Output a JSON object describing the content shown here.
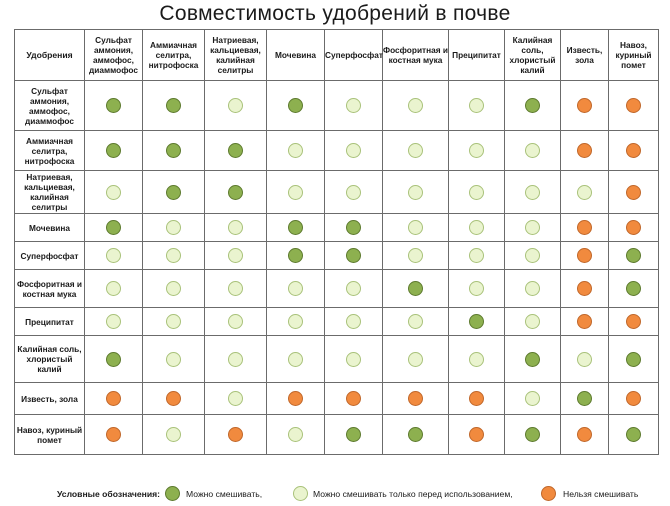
{
  "title": "Совместимость удобрений в почве",
  "corner_label": "Удобрения",
  "columns": [
    "Сульфат аммония, аммофос, диаммофос",
    "Аммиачная селитра, нитрофоска",
    "Натриевая, кальциевая, калийная селитры",
    "Мочевина",
    "Суперфосфат",
    "Фосфоритная и костная мука",
    "Преципитат",
    "Калийная соль, хлористый калий",
    "Известь, зола",
    "Навоз, куриный помет"
  ],
  "rows": [
    {
      "label": "Сульфат аммония, аммофос, диаммофос",
      "cells": [
        "G",
        "G",
        "L",
        "G",
        "L",
        "L",
        "L",
        "G",
        "O",
        "O"
      ]
    },
    {
      "label": "Аммиачная селитра, нитрофоска",
      "cells": [
        "G",
        "G",
        "G",
        "L",
        "L",
        "L",
        "L",
        "L",
        "O",
        "O"
      ]
    },
    {
      "label": "Натриевая, кальциевая, калийная селитры",
      "cells": [
        "L",
        "G",
        "G",
        "L",
        "L",
        "L",
        "L",
        "L",
        "L",
        "O"
      ]
    },
    {
      "label": "Мочевина",
      "cells": [
        "G",
        "L",
        "L",
        "G",
        "G",
        "L",
        "L",
        "L",
        "O",
        "O"
      ]
    },
    {
      "label": "Суперфосфат",
      "cells": [
        "L",
        "L",
        "L",
        "G",
        "G",
        "L",
        "L",
        "L",
        "O",
        "G"
      ]
    },
    {
      "label": "Фосфоритная и костная мука",
      "cells": [
        "L",
        "L",
        "L",
        "L",
        "L",
        "G",
        "L",
        "L",
        "O",
        "G"
      ]
    },
    {
      "label": "Преципитат",
      "cells": [
        "L",
        "L",
        "L",
        "L",
        "L",
        "L",
        "G",
        "L",
        "O",
        "O"
      ]
    },
    {
      "label": "Калийная соль, хлористый калий",
      "cells": [
        "G",
        "L",
        "L",
        "L",
        "L",
        "L",
        "L",
        "G",
        "L",
        "G"
      ]
    },
    {
      "label": "Известь, зола",
      "cells": [
        "O",
        "O",
        "L",
        "O",
        "O",
        "O",
        "O",
        "L",
        "G",
        "O"
      ]
    },
    {
      "label": "Навоз, куриный помет",
      "cells": [
        "O",
        "L",
        "O",
        "L",
        "G",
        "G",
        "O",
        "G",
        "O",
        "G"
      ]
    }
  ],
  "legend": {
    "label": "Условные обозначения:",
    "green_text": "Можно смешивать,",
    "light_text": "Можно смешивать только перед использованием,",
    "orange_text": "Нельзя смешивать"
  },
  "colors": {
    "G": {
      "fill": "#8db04f",
      "stroke": "#5d7a2e"
    },
    "L": {
      "fill": "#eaf4cf",
      "stroke": "#a9c27a"
    },
    "O": {
      "fill": "#f18a3e",
      "stroke": "#c0672a"
    }
  }
}
